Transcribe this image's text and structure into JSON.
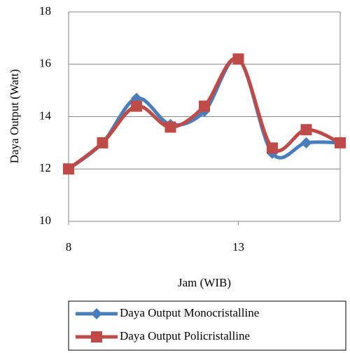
{
  "chart_data": {
    "type": "line",
    "x_label": "Jam (WIB)",
    "y_label": "Daya Output (Watt)",
    "x": [
      8,
      9,
      10,
      11,
      12,
      13,
      14,
      15,
      16
    ],
    "series": [
      {
        "name": "Daya Output Monocristalline",
        "color": "#4a7ebb",
        "marker": "diamond",
        "values": [
          12,
          13,
          14.7,
          13.7,
          14.2,
          16.2,
          12.6,
          13.0,
          13.0
        ]
      },
      {
        "name": "Daya Output Policristalline",
        "color": "#be4b48",
        "marker": "square",
        "values": [
          12,
          13,
          14.4,
          13.6,
          14.4,
          16.2,
          12.8,
          13.5,
          13.0
        ]
      }
    ],
    "xlim": [
      8,
      16
    ],
    "xticks": [
      8,
      13
    ],
    "ylim": [
      10,
      18
    ],
    "yticks": [
      10,
      12,
      14,
      16,
      18
    ],
    "grid": true,
    "smooth": true,
    "legend": "bottom"
  }
}
